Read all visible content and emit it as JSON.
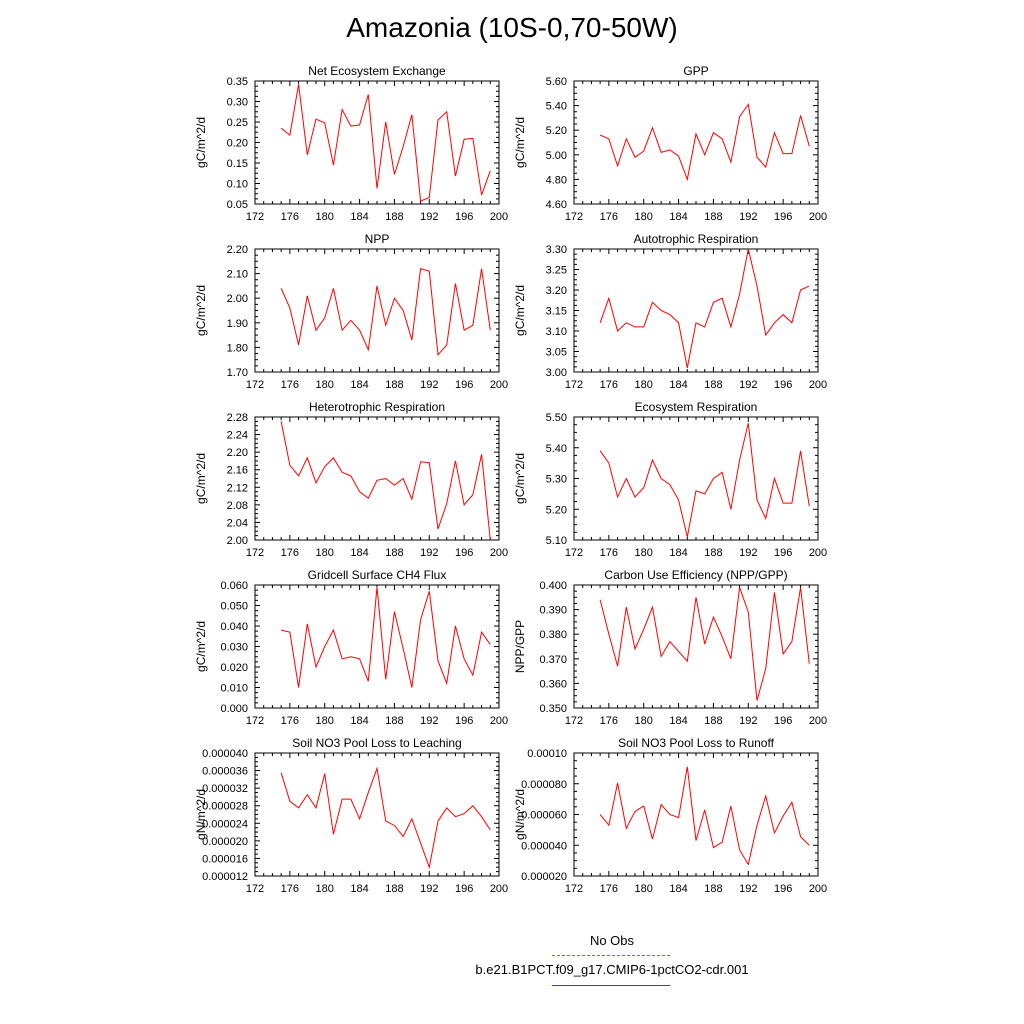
{
  "page": {
    "title": "Amazonia (10S-0,70-50W)"
  },
  "legend": {
    "items": [
      {
        "label": "No Obs",
        "color": "#6666cc",
        "style": "dashed"
      },
      {
        "label": "b.e21.B1PCT.f09_g17.CMIP6-1pctCO2-cdr.001",
        "color": "#ff0000",
        "style": "solid"
      }
    ]
  },
  "chart_data": [
    {
      "type": "line",
      "title": "Net Ecosystem Exchange",
      "ylabel": "gC/m^2/d",
      "xlim": [
        172,
        200
      ],
      "xticks": [
        "172",
        "176",
        "180",
        "184",
        "188",
        "192",
        "196",
        "200"
      ],
      "ylim": [
        0.05,
        0.35
      ],
      "yticks": [
        "0.05",
        "0.10",
        "0.15",
        "0.20",
        "0.25",
        "0.30",
        "0.35"
      ],
      "x": [
        175,
        176,
        177,
        178,
        179,
        180,
        181,
        182,
        183,
        184,
        185,
        186,
        187,
        188,
        189,
        190,
        191,
        192,
        193,
        194,
        195,
        196,
        197,
        198,
        199
      ],
      "series": [
        {
          "color": "#ff0000",
          "values": [
            0.235,
            0.218,
            0.342,
            0.17,
            0.257,
            0.248,
            0.145,
            0.28,
            0.24,
            0.243,
            0.317,
            0.088,
            0.25,
            0.122,
            0.19,
            0.268,
            0.057,
            0.066,
            0.255,
            0.275,
            0.118,
            0.208,
            0.21,
            0.072,
            0.131
          ]
        }
      ]
    },
    {
      "type": "line",
      "title": "GPP",
      "ylabel": "gC/m^2/d",
      "xlim": [
        172,
        200
      ],
      "xticks": [
        "172",
        "176",
        "180",
        "184",
        "188",
        "192",
        "196",
        "200"
      ],
      "ylim": [
        4.6,
        5.6
      ],
      "yticks": [
        "4.60",
        "4.80",
        "5.00",
        "5.20",
        "5.40",
        "5.60"
      ],
      "x": [
        175,
        176,
        177,
        178,
        179,
        180,
        181,
        182,
        183,
        184,
        185,
        186,
        187,
        188,
        189,
        190,
        191,
        192,
        193,
        194,
        195,
        196,
        197,
        198,
        199
      ],
      "series": [
        {
          "color": "#ff0000",
          "values": [
            5.16,
            5.13,
            4.91,
            5.13,
            4.98,
            5.03,
            5.22,
            5.02,
            5.04,
            4.99,
            4.8,
            5.17,
            5.0,
            5.18,
            5.13,
            4.94,
            5.31,
            5.41,
            4.98,
            4.9,
            5.18,
            5.01,
            5.01,
            5.32,
            5.07
          ]
        }
      ]
    },
    {
      "type": "line",
      "title": "NPP",
      "ylabel": "gC/m^2/d",
      "xlim": [
        172,
        200
      ],
      "xticks": [
        "172",
        "176",
        "180",
        "184",
        "188",
        "192",
        "196",
        "200"
      ],
      "ylim": [
        1.7,
        2.2
      ],
      "yticks": [
        "1.70",
        "1.80",
        "1.90",
        "2.00",
        "2.10",
        "2.20"
      ],
      "x": [
        175,
        176,
        177,
        178,
        179,
        180,
        181,
        182,
        183,
        184,
        185,
        186,
        187,
        188,
        189,
        190,
        191,
        192,
        193,
        194,
        195,
        196,
        197,
        198,
        199
      ],
      "series": [
        {
          "color": "#ff0000",
          "values": [
            2.04,
            1.96,
            1.81,
            2.01,
            1.87,
            1.92,
            2.04,
            1.87,
            1.91,
            1.87,
            1.79,
            2.05,
            1.89,
            2.0,
            1.95,
            1.83,
            2.12,
            2.11,
            1.77,
            1.81,
            2.06,
            1.87,
            1.89,
            2.12,
            1.87
          ]
        }
      ]
    },
    {
      "type": "line",
      "title": "Autotrophic Respiration",
      "ylabel": "gC/m^2/d",
      "xlim": [
        172,
        200
      ],
      "xticks": [
        "172",
        "176",
        "180",
        "184",
        "188",
        "192",
        "196",
        "200"
      ],
      "ylim": [
        3.0,
        3.3
      ],
      "yticks": [
        "3.00",
        "3.05",
        "3.10",
        "3.15",
        "3.20",
        "3.25",
        "3.30"
      ],
      "x": [
        175,
        176,
        177,
        178,
        179,
        180,
        181,
        182,
        183,
        184,
        185,
        186,
        187,
        188,
        189,
        190,
        191,
        192,
        193,
        194,
        195,
        196,
        197,
        198,
        199
      ],
      "series": [
        {
          "color": "#ff0000",
          "values": [
            3.12,
            3.18,
            3.1,
            3.12,
            3.11,
            3.11,
            3.17,
            3.15,
            3.14,
            3.12,
            3.01,
            3.12,
            3.11,
            3.17,
            3.18,
            3.11,
            3.19,
            3.3,
            3.21,
            3.09,
            3.12,
            3.14,
            3.12,
            3.2,
            3.21
          ]
        }
      ]
    },
    {
      "type": "line",
      "title": "Heterotrophic Respiration",
      "ylabel": "gC/m^2/d",
      "xlim": [
        172,
        200
      ],
      "xticks": [
        "172",
        "176",
        "180",
        "184",
        "188",
        "192",
        "196",
        "200"
      ],
      "ylim": [
        2.0,
        2.28
      ],
      "yticks": [
        "2.00",
        "2.04",
        "2.08",
        "2.12",
        "2.16",
        "2.20",
        "2.24",
        "2.28"
      ],
      "x": [
        175,
        176,
        177,
        178,
        179,
        180,
        181,
        182,
        183,
        184,
        185,
        186,
        187,
        188,
        189,
        190,
        191,
        192,
        193,
        194,
        195,
        196,
        197,
        198,
        199
      ],
      "series": [
        {
          "color": "#ff0000",
          "values": [
            2.27,
            2.17,
            2.146,
            2.187,
            2.13,
            2.167,
            2.187,
            2.154,
            2.146,
            2.11,
            2.095,
            2.136,
            2.14,
            2.125,
            2.14,
            2.093,
            2.178,
            2.176,
            2.025,
            2.083,
            2.18,
            2.08,
            2.103,
            2.195,
            2.0
          ]
        }
      ]
    },
    {
      "type": "line",
      "title": "Ecosystem Respiration",
      "ylabel": "gC/m^2/d",
      "xlim": [
        172,
        200
      ],
      "xticks": [
        "172",
        "176",
        "180",
        "184",
        "188",
        "192",
        "196",
        "200"
      ],
      "ylim": [
        5.1,
        5.5
      ],
      "yticks": [
        "5.10",
        "5.20",
        "5.30",
        "5.40",
        "5.50"
      ],
      "x": [
        175,
        176,
        177,
        178,
        179,
        180,
        181,
        182,
        183,
        184,
        185,
        186,
        187,
        188,
        189,
        190,
        191,
        192,
        193,
        194,
        195,
        196,
        197,
        198,
        199
      ],
      "series": [
        {
          "color": "#ff0000",
          "values": [
            5.39,
            5.35,
            5.24,
            5.3,
            5.24,
            5.27,
            5.36,
            5.3,
            5.28,
            5.23,
            5.11,
            5.26,
            5.25,
            5.3,
            5.32,
            5.2,
            5.36,
            5.48,
            5.23,
            5.17,
            5.3,
            5.22,
            5.22,
            5.39,
            5.21
          ]
        }
      ]
    },
    {
      "type": "line",
      "title": "Gridcell Surface CH4 Flux",
      "ylabel": "gC/m^2/d",
      "xlim": [
        172,
        200
      ],
      "xticks": [
        "172",
        "176",
        "180",
        "184",
        "188",
        "192",
        "196",
        "200"
      ],
      "ylim": [
        0.0,
        0.06
      ],
      "yticks": [
        "0.000",
        "0.010",
        "0.020",
        "0.030",
        "0.040",
        "0.050",
        "0.060"
      ],
      "x": [
        175,
        176,
        177,
        178,
        179,
        180,
        181,
        182,
        183,
        184,
        185,
        186,
        187,
        188,
        189,
        190,
        191,
        192,
        193,
        194,
        195,
        196,
        197,
        198,
        199
      ],
      "series": [
        {
          "color": "#ff0000",
          "values": [
            0.038,
            0.037,
            0.01,
            0.041,
            0.02,
            0.03,
            0.038,
            0.024,
            0.025,
            0.024,
            0.013,
            0.059,
            0.014,
            0.047,
            0.029,
            0.01,
            0.043,
            0.057,
            0.023,
            0.012,
            0.04,
            0.024,
            0.016,
            0.037,
            0.031
          ]
        }
      ]
    },
    {
      "type": "line",
      "title": "Carbon Use Efficiency (NPP/GPP)",
      "ylabel": "NPP/GPP",
      "xlim": [
        172,
        200
      ],
      "xticks": [
        "172",
        "176",
        "180",
        "184",
        "188",
        "192",
        "196",
        "200"
      ],
      "ylim": [
        0.35,
        0.4
      ],
      "yticks": [
        "0.350",
        "0.360",
        "0.370",
        "0.380",
        "0.390",
        "0.400"
      ],
      "x": [
        175,
        176,
        177,
        178,
        179,
        180,
        181,
        182,
        183,
        184,
        185,
        186,
        187,
        188,
        189,
        190,
        191,
        192,
        193,
        194,
        195,
        196,
        197,
        198,
        199
      ],
      "series": [
        {
          "color": "#ff0000",
          "values": [
            0.394,
            0.38,
            0.367,
            0.391,
            0.374,
            0.382,
            0.391,
            0.371,
            0.377,
            0.373,
            0.369,
            0.395,
            0.376,
            0.387,
            0.379,
            0.37,
            0.399,
            0.389,
            0.353,
            0.366,
            0.397,
            0.372,
            0.377,
            0.399,
            0.368
          ]
        }
      ]
    },
    {
      "type": "line",
      "title": "Soil NO3 Pool Loss to Leaching",
      "ylabel": "gN/m^2/d",
      "xlim": [
        172,
        200
      ],
      "xticks": [
        "172",
        "176",
        "180",
        "184",
        "188",
        "192",
        "196",
        "200"
      ],
      "ylim": [
        1.2e-05,
        4e-05
      ],
      "yticks": [
        "0.000012",
        "0.000016",
        "0.000020",
        "0.000024",
        "0.000028",
        "0.000032",
        "0.000036",
        "0.000040"
      ],
      "x": [
        175,
        176,
        177,
        178,
        179,
        180,
        181,
        182,
        183,
        184,
        185,
        186,
        187,
        188,
        189,
        190,
        191,
        192,
        193,
        194,
        195,
        196,
        197,
        198,
        199
      ],
      "series": [
        {
          "color": "#ff0000",
          "values": [
            3.55e-05,
            2.9e-05,
            2.75e-05,
            3.05e-05,
            2.75e-05,
            3.53e-05,
            2.15e-05,
            2.95e-05,
            2.95e-05,
            2.5e-05,
            3.1e-05,
            3.65e-05,
            2.45e-05,
            2.35e-05,
            2.1e-05,
            2.5e-05,
            1.95e-05,
            1.4e-05,
            2.45e-05,
            2.75e-05,
            2.55e-05,
            2.62e-05,
            2.8e-05,
            2.55e-05,
            2.25e-05
          ]
        }
      ]
    },
    {
      "type": "line",
      "title": "Soil NO3 Pool Loss to Runoff",
      "ylabel": "gN/m^2/d",
      "xlim": [
        172,
        200
      ],
      "xticks": [
        "172",
        "176",
        "180",
        "184",
        "188",
        "192",
        "196",
        "200"
      ],
      "ylim": [
        2e-05,
        0.0001
      ],
      "yticks": [
        "0.000020",
        "0.000040",
        "0.000060",
        "0.000080",
        "0.00010"
      ],
      "x": [
        175,
        176,
        177,
        178,
        179,
        180,
        181,
        182,
        183,
        184,
        185,
        186,
        187,
        188,
        189,
        190,
        191,
        192,
        193,
        194,
        195,
        196,
        197,
        198,
        199
      ],
      "series": [
        {
          "color": "#ff0000",
          "values": [
            6e-05,
            5.3e-05,
            8.05e-05,
            5.1e-05,
            6.2e-05,
            6.55e-05,
            4.4e-05,
            6.65e-05,
            6e-05,
            5.8e-05,
            9.1e-05,
            4.3e-05,
            6.3e-05,
            3.85e-05,
            4.2e-05,
            6.55e-05,
            3.7e-05,
            2.75e-05,
            5.3e-05,
            7.2e-05,
            4.8e-05,
            5.9e-05,
            6.8e-05,
            4.55e-05,
            4e-05
          ]
        }
      ]
    }
  ]
}
